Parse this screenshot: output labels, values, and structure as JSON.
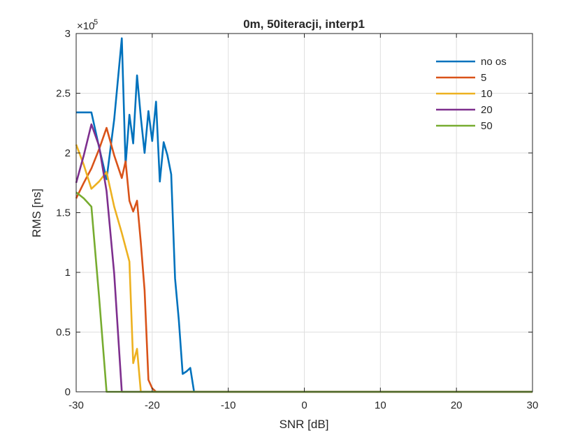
{
  "chart_data": {
    "type": "line",
    "title": "0m, 50iteracji, interp1",
    "xlabel": "SNR [dB]",
    "ylabel": "RMS [ns]",
    "xlim": [
      -30,
      30
    ],
    "ylim": [
      0,
      3
    ],
    "y_exponent_label": "×10",
    "y_exponent_power": "5",
    "x_ticks": [
      -30,
      -20,
      -10,
      0,
      10,
      20,
      30
    ],
    "x_tick_labels": [
      "-30",
      "-20",
      "-10",
      "0",
      "10",
      "20",
      "30"
    ],
    "y_ticks": [
      0,
      0.5,
      1,
      1.5,
      2,
      2.5,
      3
    ],
    "y_tick_labels": [
      "0",
      "0.5",
      "1",
      "1.5",
      "2",
      "2.5",
      "3"
    ],
    "grid": true,
    "legend_position": "top-right",
    "series": [
      {
        "name": "no os",
        "color": "#0072bd",
        "x": [
          -30,
          -29,
          -28,
          -27,
          -26,
          -25,
          -24,
          -23.5,
          -23,
          -22.5,
          -22,
          -21.5,
          -21,
          -20.5,
          -20,
          -19.5,
          -19,
          -18.5,
          -18,
          -17.5,
          -17,
          -16.5,
          -16,
          -15.5,
          -15,
          -14.5,
          -14,
          -13,
          -10,
          0,
          10,
          20,
          30
        ],
        "y": [
          2.34,
          2.34,
          2.34,
          2.05,
          1.78,
          2.28,
          2.96,
          1.9,
          2.32,
          2.08,
          2.65,
          2.3,
          2.0,
          2.35,
          2.1,
          2.43,
          1.76,
          2.09,
          1.98,
          1.82,
          0.95,
          0.6,
          0.15,
          0.17,
          0.2,
          0.0,
          0,
          0,
          0,
          0,
          0,
          0,
          0
        ]
      },
      {
        "name": "5",
        "color": "#d95319",
        "x": [
          -30,
          -29,
          -28,
          -27,
          -26,
          -25,
          -24,
          -23.5,
          -23,
          -22.5,
          -22,
          -21.5,
          -21,
          -20.5,
          -20,
          -19.5,
          -19,
          -10,
          0,
          10,
          20,
          30
        ],
        "y": [
          1.62,
          1.75,
          1.87,
          2.03,
          2.21,
          1.98,
          1.79,
          1.93,
          1.6,
          1.51,
          1.6,
          1.25,
          0.85,
          0.1,
          0.03,
          0.0,
          0,
          0,
          0,
          0,
          0,
          0
        ]
      },
      {
        "name": "10",
        "color": "#edb120",
        "x": [
          -30,
          -29,
          -28,
          -27,
          -26,
          -25,
          -24,
          -23,
          -22.5,
          -22,
          -21.5,
          -21,
          -20,
          -10,
          0,
          10,
          20,
          30
        ],
        "y": [
          2.07,
          1.9,
          1.7,
          1.76,
          1.84,
          1.55,
          1.33,
          1.09,
          0.24,
          0.36,
          0.0,
          0,
          0,
          0,
          0,
          0,
          0,
          0
        ]
      },
      {
        "name": "20",
        "color": "#7e2f8e",
        "x": [
          -30,
          -29,
          -28,
          -27,
          -26,
          -25,
          -24,
          -23,
          -20,
          -10,
          0,
          10,
          20,
          30
        ],
        "y": [
          1.75,
          1.98,
          2.24,
          2.06,
          1.68,
          0.99,
          0.0,
          0,
          0,
          0,
          0,
          0,
          0,
          0
        ]
      },
      {
        "name": "50",
        "color": "#77ac30",
        "x": [
          -30,
          -29,
          -28,
          -27,
          -26,
          -25,
          -20,
          -10,
          0,
          10,
          20,
          30
        ],
        "y": [
          1.67,
          1.62,
          1.55,
          0.8,
          0.0,
          0,
          0,
          0,
          0,
          0,
          0,
          0
        ]
      }
    ]
  }
}
